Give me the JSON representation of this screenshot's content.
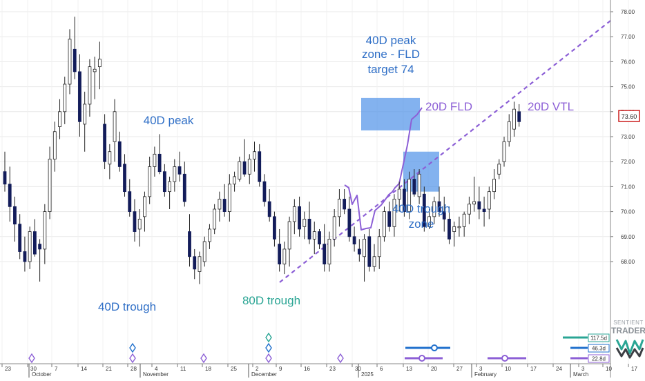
{
  "chart_data": {
    "type": "candlestick",
    "current_price": "73.60",
    "ylim": [
      66.8,
      78.4
    ],
    "y_ticks": [
      "68.00",
      "69.00",
      "70.00",
      "71.00",
      "72.00",
      "73.00",
      "74.00",
      "75.00",
      "76.00",
      "77.00",
      "78.00"
    ],
    "x_day_labels": [
      "23",
      "30",
      "7",
      "14",
      "21",
      "28",
      "4",
      "11",
      "18",
      "25",
      "2",
      "9",
      "16",
      "23",
      "30",
      "6",
      "13",
      "20",
      "27",
      "3",
      "10",
      "17",
      "24",
      "3",
      "10",
      "17"
    ],
    "x_month_labels": [
      "October",
      "November",
      "December",
      "2025",
      "February",
      "March"
    ],
    "candles": [
      [
        0,
        71.6,
        72.4,
        70.8,
        71.1
      ],
      [
        1,
        71.1,
        71.8,
        69.6,
        70.2
      ],
      [
        2,
        70.2,
        70.6,
        68.8,
        69.5
      ],
      [
        3,
        69.5,
        69.9,
        68.1,
        68.4
      ],
      [
        4,
        68.4,
        69.0,
        67.6,
        68.0
      ],
      [
        5,
        68.0,
        69.4,
        67.7,
        69.2
      ],
      [
        6,
        69.2,
        69.7,
        68.2,
        68.3
      ],
      [
        7,
        68.7,
        68.9,
        67.2,
        68.5
      ],
      [
        8,
        68.5,
        70.3,
        67.9,
        70.0
      ],
      [
        9,
        70.0,
        72.6,
        69.7,
        72.1
      ],
      [
        10,
        72.1,
        73.6,
        71.6,
        73.2
      ],
      [
        11,
        73.4,
        74.5,
        72.9,
        74.0
      ],
      [
        12,
        74.0,
        75.4,
        73.5,
        75.1
      ],
      [
        13,
        75.1,
        77.3,
        74.7,
        76.9
      ],
      [
        14,
        76.5,
        77.8,
        75.3,
        75.6
      ],
      [
        15,
        75.6,
        76.3,
        73.0,
        73.6
      ],
      [
        16,
        73.5,
        74.8,
        72.4,
        74.3
      ],
      [
        17,
        74.3,
        76.1,
        73.8,
        75.8
      ],
      [
        18,
        75.6,
        76.2,
        74.5,
        75.7
      ],
      [
        19,
        75.8,
        76.8,
        74.9,
        76.1
      ],
      [
        20,
        73.5,
        73.9,
        71.7,
        72.0
      ],
      [
        21,
        71.9,
        72.7,
        71.3,
        72.4
      ],
      [
        22,
        72.8,
        74.5,
        72.0,
        74.0
      ],
      [
        23,
        72.8,
        73.2,
        71.6,
        71.8
      ],
      [
        24,
        71.9,
        72.3,
        70.6,
        70.8
      ],
      [
        25,
        70.8,
        71.3,
        69.8,
        70.0
      ],
      [
        26,
        70.0,
        70.5,
        68.8,
        69.2
      ],
      [
        27,
        69.3,
        70.1,
        68.6,
        69.7
      ],
      [
        28,
        69.8,
        70.8,
        69.2,
        70.6
      ],
      [
        29,
        70.6,
        72.2,
        70.3,
        71.8
      ],
      [
        30,
        71.8,
        72.6,
        71.4,
        72.3
      ],
      [
        31,
        72.3,
        73.1,
        71.5,
        71.6
      ],
      [
        32,
        71.6,
        71.9,
        70.6,
        70.8
      ],
      [
        33,
        70.8,
        71.4,
        70.1,
        71.2
      ],
      [
        34,
        71.2,
        72.1,
        70.8,
        71.8
      ],
      [
        35,
        71.8,
        72.4,
        71.2,
        71.5
      ],
      [
        36,
        71.5,
        72.0,
        70.2,
        70.4
      ],
      [
        37,
        69.2,
        69.9,
        67.8,
        68.2
      ],
      [
        38,
        68.2,
        68.5,
        67.3,
        67.7
      ],
      [
        39,
        67.6,
        68.4,
        67.1,
        68.2
      ],
      [
        40,
        68.0,
        69.0,
        67.8,
        68.8
      ],
      [
        41,
        68.8,
        69.5,
        68.5,
        69.3
      ],
      [
        42,
        69.3,
        70.3,
        69.1,
        70.1
      ],
      [
        43,
        70.1,
        70.8,
        69.6,
        70.5
      ],
      [
        44,
        70.5,
        71.1,
        69.8,
        70.0
      ],
      [
        45,
        70.0,
        71.5,
        69.6,
        71.1
      ],
      [
        46,
        71.1,
        71.6,
        70.8,
        71.4
      ],
      [
        47,
        71.3,
        72.2,
        71.2,
        72.0
      ],
      [
        48,
        72.0,
        72.9,
        71.4,
        71.5
      ],
      [
        49,
        71.5,
        72.3,
        71.1,
        72.1
      ],
      [
        50,
        72.1,
        72.8,
        71.6,
        72.4
      ],
      [
        51,
        72.4,
        72.7,
        71.0,
        71.2
      ],
      [
        52,
        71.2,
        71.5,
        70.2,
        70.4
      ],
      [
        53,
        70.4,
        70.9,
        69.6,
        69.8
      ],
      [
        54,
        69.8,
        70.0,
        68.6,
        68.9
      ],
      [
        55,
        68.7,
        69.3,
        67.6,
        67.9
      ],
      [
        56,
        67.9,
        68.8,
        67.5,
        68.5
      ],
      [
        57,
        68.5,
        69.8,
        67.8,
        69.6
      ],
      [
        58,
        69.6,
        70.5,
        69.1,
        70.2
      ],
      [
        59,
        70.2,
        70.6,
        69.0,
        69.3
      ],
      [
        60,
        69.4,
        70.0,
        68.9,
        69.7
      ],
      [
        61,
        69.7,
        70.4,
        68.7,
        68.9
      ],
      [
        62,
        68.9,
        69.6,
        68.3,
        69.2
      ],
      [
        63,
        69.2,
        69.3,
        68.5,
        68.7
      ],
      [
        64,
        68.7,
        69.5,
        67.6,
        67.9
      ],
      [
        65,
        67.9,
        69.2,
        67.6,
        68.9
      ],
      [
        66,
        68.9,
        70.1,
        68.6,
        69.8
      ],
      [
        67,
        69.8,
        70.9,
        69.4,
        70.5
      ],
      [
        68,
        70.5,
        70.9,
        69.9,
        70.1
      ],
      [
        69,
        70.1,
        70.6,
        68.8,
        69.0
      ],
      [
        70,
        69.0,
        69.4,
        68.4,
        68.7
      ],
      [
        71,
        68.5,
        68.9,
        68.0,
        68.3
      ],
      [
        72,
        68.2,
        69.1,
        67.2,
        68.9
      ],
      [
        73,
        69.0,
        69.3,
        67.6,
        67.8
      ],
      [
        74,
        67.8,
        68.7,
        67.6,
        68.2
      ],
      [
        75,
        68.2,
        69.3,
        67.7,
        69.0
      ],
      [
        76,
        69.0,
        70.2,
        68.8,
        70.0
      ],
      [
        77,
        70.0,
        70.4,
        69.2,
        69.4
      ],
      [
        78,
        69.4,
        70.7,
        69.0,
        70.5
      ],
      [
        79,
        70.5,
        71.2,
        70.0,
        70.9
      ],
      [
        80,
        70.9,
        71.3,
        69.8,
        70.0
      ],
      [
        81,
        70.0,
        71.6,
        69.7,
        71.3
      ],
      [
        82,
        71.3,
        71.7,
        70.6,
        70.7
      ],
      [
        83,
        70.6,
        71.7,
        70.3,
        71.5
      ],
      [
        84,
        70.7,
        71.0,
        69.2,
        69.4
      ],
      [
        85,
        69.4,
        70.1,
        69.3,
        69.8
      ],
      [
        86,
        69.8,
        70.6,
        69.5,
        70.4
      ],
      [
        87,
        70.4,
        71.0,
        69.8,
        70.0
      ],
      [
        88,
        70.0,
        70.6,
        69.2,
        69.7
      ],
      [
        89,
        69.7,
        70.2,
        68.7,
        68.9
      ],
      [
        90,
        69.2,
        69.6,
        68.6,
        69.4
      ],
      [
        91,
        69.4,
        69.8,
        69.0,
        69.4
      ],
      [
        92,
        69.4,
        70.0,
        69.0,
        69.9
      ],
      [
        93,
        69.9,
        70.6,
        69.5,
        70.3
      ],
      [
        94,
        70.3,
        71.4,
        70.0,
        70.4
      ],
      [
        95,
        70.4,
        71.0,
        69.7,
        70.1
      ],
      [
        96,
        70.1,
        70.6,
        69.4,
        70.0
      ],
      [
        97,
        70.1,
        71.0,
        69.7,
        70.8
      ],
      [
        98,
        70.8,
        71.7,
        70.5,
        71.3
      ],
      [
        99,
        71.5,
        72.1,
        71.3,
        71.9
      ],
      [
        100,
        72.0,
        73.0,
        71.8,
        72.8
      ],
      [
        101,
        72.8,
        73.9,
        72.6,
        73.6
      ],
      [
        102,
        73.3,
        74.4,
        73.0,
        74.1
      ],
      [
        103,
        74.0,
        74.3,
        73.4,
        73.6
      ]
    ],
    "annotations": {
      "peak_zone_line1": "40D peak",
      "peak_zone_line2": "zone - FLD",
      "peak_zone_line3": "target 74",
      "peak_40d": "40D peak",
      "trough_40d": "40D trough",
      "trough_80d": "80D trough",
      "trough_zone_line1": "40D trough",
      "trough_zone_line2": "zone",
      "fld_20d": "20D FLD",
      "vtl_20d": "20D VTL"
    },
    "cycle_labels": [
      "117.5d",
      "46.3d",
      "22.8d"
    ],
    "logo_line1": "SENTIENT",
    "logo_line2": "TRADER",
    "colors": {
      "bearish": "#131c5a",
      "bullish": "#ffffff",
      "annotation_blue": "#2e6ec6",
      "annotation_teal": "#2aa594",
      "purple": "#8c5fd6",
      "zone_fill": "#4f91e8",
      "price_box": "#cc1f1f"
    }
  }
}
